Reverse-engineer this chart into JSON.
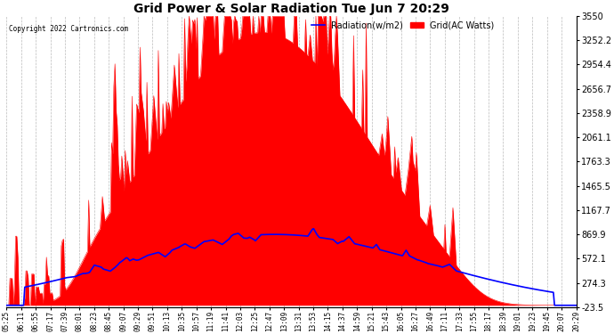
{
  "title": "Grid Power & Solar Radiation Tue Jun 7 20:29",
  "copyright": "Copyright 2022 Cartronics.com",
  "legend_radiation": "Radiation(w/m2)",
  "legend_grid": "Grid(AC Watts)",
  "radiation_color": "blue",
  "grid_color": "red",
  "background_color": "white",
  "grid_line_color": "#aaaaaa",
  "ymin": -23.5,
  "ymax": 3550.0,
  "yticks": [
    3550.0,
    3252.2,
    2954.4,
    2656.7,
    2358.9,
    2061.1,
    1763.3,
    1465.5,
    1167.7,
    869.9,
    572.1,
    274.3,
    -23.5
  ],
  "xtick_labels": [
    "05:25",
    "06:11",
    "06:55",
    "07:17",
    "07:39",
    "08:01",
    "08:23",
    "08:45",
    "09:07",
    "09:29",
    "09:51",
    "10:13",
    "10:35",
    "10:57",
    "11:19",
    "11:41",
    "12:03",
    "12:25",
    "12:47",
    "13:09",
    "13:31",
    "13:53",
    "14:15",
    "14:37",
    "14:59",
    "15:21",
    "15:43",
    "16:05",
    "16:27",
    "16:49",
    "17:11",
    "17:33",
    "17:55",
    "18:17",
    "18:39",
    "19:01",
    "19:23",
    "19:45",
    "20:07",
    "20:29"
  ],
  "figwidth": 6.9,
  "figheight": 3.75,
  "dpi": 100
}
